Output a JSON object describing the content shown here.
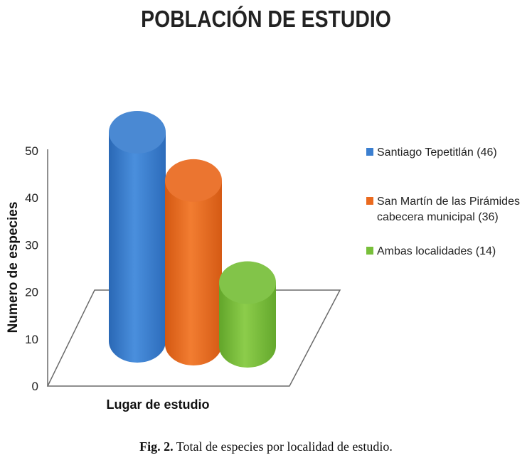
{
  "chart_data": {
    "type": "bar",
    "title": "POBLACIÓN DE ESTUDIO",
    "xlabel": "Lugar de estudio",
    "ylabel": "Numero de especies",
    "ylim": [
      0,
      50
    ],
    "yticks": [
      0,
      10,
      20,
      30,
      40,
      50
    ],
    "categories": [
      "Lugar de estudio"
    ],
    "series": [
      {
        "name": "Santiago Tepetitlán (46)",
        "values": [
          46
        ],
        "color": "#3b7fd0"
      },
      {
        "name": "San Martín de las Pirámides cabecera municipal (36)",
        "values": [
          36
        ],
        "color": "#ea6a1f"
      },
      {
        "name": "Ambas localidades (14)",
        "values": [
          14
        ],
        "color": "#78bf3a"
      }
    ],
    "legend_lines": [
      [
        "Santiago Tepetitlán (46)"
      ],
      [
        "San Martín de las Pirámides",
        "cabecera municipal (36)"
      ],
      [
        "Ambas localidades (14)"
      ]
    ],
    "legend_position": "right",
    "grid": false,
    "style": "3d-cylinder"
  },
  "caption": {
    "label": "Fig. 2.",
    "text": "Total de especies por localidad de estudio."
  }
}
